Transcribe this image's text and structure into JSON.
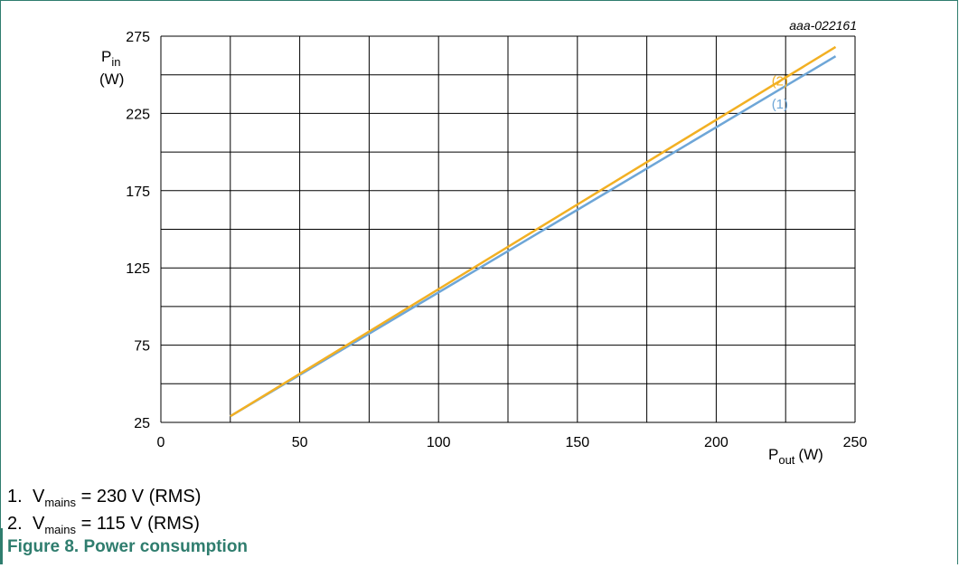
{
  "chart_data": {
    "type": "line",
    "id_label": "aaa-022161",
    "ylabel_main": "P",
    "ylabel_sub": "in",
    "ylabel_unit": "(W)",
    "xlabel_main": "P",
    "xlabel_sub": "out",
    "xlabel_unit": "(W)",
    "xlim": [
      0,
      250
    ],
    "ylim": [
      25,
      275
    ],
    "xticks": [
      0,
      50,
      100,
      150,
      200,
      250
    ],
    "yticks": [
      25,
      75,
      125,
      175,
      225,
      275
    ],
    "grid": true,
    "series": [
      {
        "name": "(1)",
        "color": "#6ea6d7",
        "x": [
          25,
          243
        ],
        "y": [
          29,
          262
        ],
        "label_at": [
          218,
          231
        ]
      },
      {
        "name": "(2)",
        "color": "#f2b023",
        "x": [
          25,
          243
        ],
        "y": [
          29,
          268
        ],
        "label_at": [
          218,
          246
        ]
      }
    ]
  },
  "legend": [
    {
      "num": "1.",
      "v": "V",
      "sub": "mains",
      "rest": "= 230 V (RMS)"
    },
    {
      "num": "2.",
      "v": "V",
      "sub": "mains",
      "rest": "= 115 V (RMS)"
    }
  ],
  "caption": "Figure 8.  Power consumption"
}
